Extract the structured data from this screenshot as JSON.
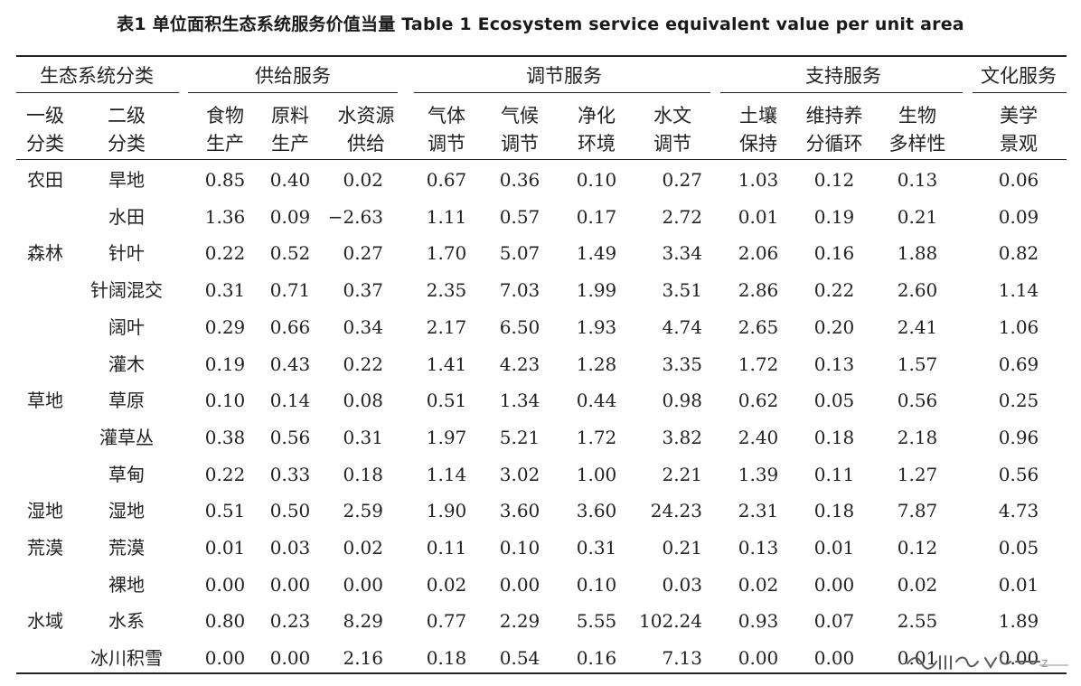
{
  "caption": "表1 单位面积生态系统服务价值当量 Table 1 Ecosystem service equivalent value per unit area",
  "header": {
    "group_label": "生态系统分类",
    "groups": [
      "供给服务",
      "调节服务",
      "支持服务",
      "文化服务"
    ],
    "subheaders": [
      [
        "一级",
        "分类"
      ],
      [
        "二级",
        "分类"
      ],
      [
        "食物",
        "生产"
      ],
      [
        "原料",
        "生产"
      ],
      [
        "水资源",
        "供给"
      ],
      [
        "气体",
        "调节"
      ],
      [
        "气候",
        "调节"
      ],
      [
        "净化",
        "环境"
      ],
      [
        "水文",
        "调节"
      ],
      [
        "土壤",
        "保持"
      ],
      [
        "维持养",
        "分循环"
      ],
      [
        "生物",
        "多样性"
      ],
      [
        "美学",
        "景观"
      ]
    ]
  },
  "rows": [
    [
      "农田",
      "旱地",
      "0.85",
      "0.40",
      "0.02",
      "0.67",
      "0.36",
      "0.10",
      "0.27",
      "1.03",
      "0.12",
      "0.13",
      "0.06"
    ],
    [
      "",
      "水田",
      "1.36",
      "0.09",
      "−2.63",
      "1.11",
      "0.57",
      "0.17",
      "2.72",
      "0.01",
      "0.19",
      "0.21",
      "0.09"
    ],
    [
      "森林",
      "针叶",
      "0.22",
      "0.52",
      "0.27",
      "1.70",
      "5.07",
      "1.49",
      "3.34",
      "2.06",
      "0.16",
      "1.88",
      "0.82"
    ],
    [
      "",
      "针阔混交",
      "0.31",
      "0.71",
      "0.37",
      "2.35",
      "7.03",
      "1.99",
      "3.51",
      "2.86",
      "0.22",
      "2.60",
      "1.14"
    ],
    [
      "",
      "阔叶",
      "0.29",
      "0.66",
      "0.34",
      "2.17",
      "6.50",
      "1.93",
      "4.74",
      "2.65",
      "0.20",
      "2.41",
      "1.06"
    ],
    [
      "",
      "灌木",
      "0.19",
      "0.43",
      "0.22",
      "1.41",
      "4.23",
      "1.28",
      "3.35",
      "1.72",
      "0.13",
      "1.57",
      "0.69"
    ],
    [
      "草地",
      "草原",
      "0.10",
      "0.14",
      "0.08",
      "0.51",
      "1.34",
      "0.44",
      "0.98",
      "0.62",
      "0.05",
      "0.56",
      "0.25"
    ],
    [
      "",
      "灌草丛",
      "0.38",
      "0.56",
      "0.31",
      "1.97",
      "5.21",
      "1.72",
      "3.82",
      "2.40",
      "0.18",
      "2.18",
      "0.96"
    ],
    [
      "",
      "草甸",
      "0.22",
      "0.33",
      "0.18",
      "1.14",
      "3.02",
      "1.00",
      "2.21",
      "1.39",
      "0.11",
      "1.27",
      "0.56"
    ],
    [
      "湿地",
      "湿地",
      "0.51",
      "0.50",
      "2.59",
      "1.90",
      "3.60",
      "3.60",
      "24.23",
      "2.31",
      "0.18",
      "7.87",
      "4.73"
    ],
    [
      "荒漠",
      "荒漠",
      "0.01",
      "0.03",
      "0.02",
      "0.11",
      "0.10",
      "0.31",
      "0.21",
      "0.13",
      "0.01",
      "0.12",
      "0.05"
    ],
    [
      "",
      "裸地",
      "0.00",
      "0.00",
      "0.00",
      "0.02",
      "0.00",
      "0.10",
      "0.03",
      "0.02",
      "0.00",
      "0.02",
      "0.01"
    ],
    [
      "水域",
      "水系",
      "0.80",
      "0.23",
      "8.29",
      "0.77",
      "2.29",
      "5.55",
      "102.24",
      "0.93",
      "0.07",
      "2.55",
      "1.89"
    ],
    [
      "",
      "冰川积雪",
      "0.00",
      "0.00",
      "2.16",
      "0.18",
      "0.54",
      "0.16",
      "7.13",
      "0.00",
      "0.00",
      "0.01",
      "0.00"
    ]
  ],
  "watermark": {
    "icon": "handwriting-watermark-icon",
    "text": "z"
  }
}
